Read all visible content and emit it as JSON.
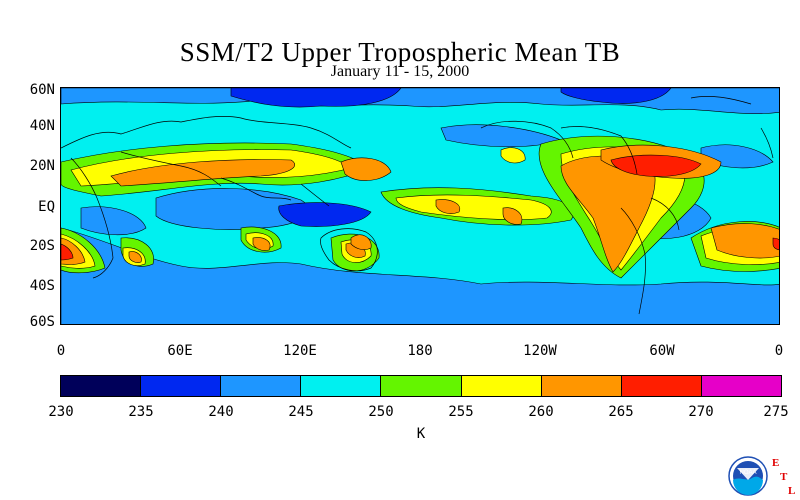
{
  "title": "SSM/T2 Upper Tropospheric Mean TB",
  "subtitle": "January 11 - 15, 2000",
  "latitude_labels": [
    "60N",
    "40N",
    "20N",
    "EQ",
    "20S",
    "40S",
    "60S"
  ],
  "longitude_labels": [
    "0",
    "60E",
    "120E",
    "180",
    "120W",
    "60W",
    "0"
  ],
  "colorbar": {
    "unit": "K",
    "ticks": [
      "230",
      "235",
      "240",
      "245",
      "250",
      "255",
      "260",
      "265",
      "270",
      "275"
    ],
    "colors": [
      "#00005a",
      "#0028f0",
      "#1e96ff",
      "#00f0f0",
      "#64f500",
      "#ffff00",
      "#ff9600",
      "#ff1e00",
      "#e600c8"
    ]
  },
  "logo": {
    "agency_text": "NOAA",
    "lab_letters": [
      "E",
      "T",
      "L"
    ]
  }
}
